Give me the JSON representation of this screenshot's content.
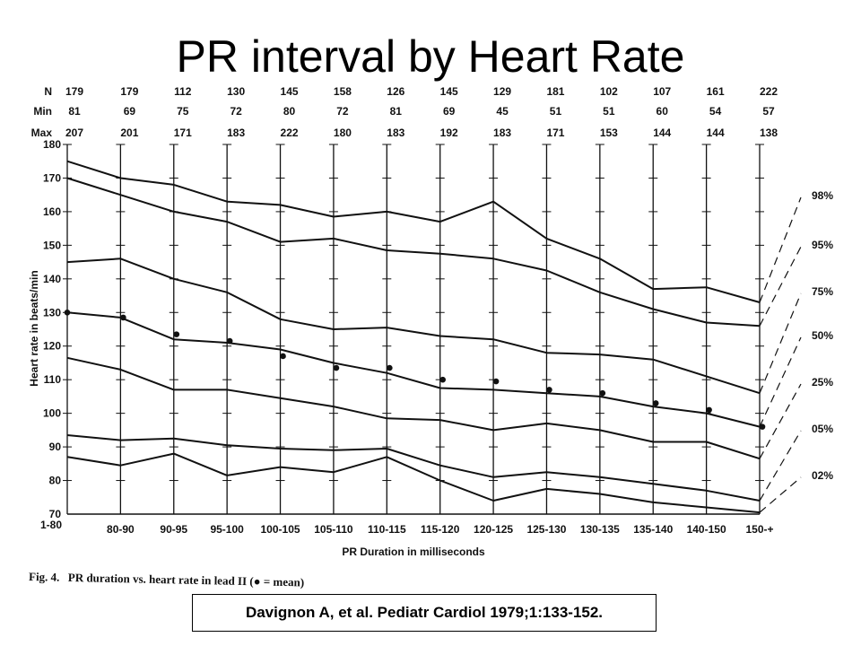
{
  "slide": {
    "title": "PR interval by Heart Rate",
    "citation": "Davignon A, et al. Pediatr Cardiol 1979;1:133-152."
  },
  "chart_data": {
    "type": "line",
    "caption_label": "Fig. 4.",
    "caption": "PR duration vs. heart rate in lead II (● = mean)",
    "xlabel": "PR Duration in milliseconds",
    "ylabel": "Heart rate in beats/min",
    "ylim": [
      70,
      180
    ],
    "yticks": [
      70,
      80,
      90,
      100,
      110,
      120,
      130,
      140,
      150,
      160,
      170,
      180
    ],
    "categories": [
      "1-80",
      "80-90",
      "90-95",
      "95-100",
      "100-105",
      "105-110",
      "110-115",
      "115-120",
      "120-125",
      "125-130",
      "130-135",
      "135-140",
      "140-150",
      "150-+"
    ],
    "row_labels": [
      "N",
      "Min",
      "Max"
    ],
    "N": [
      179,
      179,
      112,
      130,
      145,
      158,
      126,
      145,
      129,
      181,
      102,
      107,
      161,
      222
    ],
    "Min": [
      81,
      69,
      75,
      72,
      80,
      72,
      81,
      69,
      45,
      51,
      51,
      60,
      54,
      57
    ],
    "Max": [
      207,
      201,
      171,
      183,
      222,
      180,
      183,
      192,
      183,
      171,
      153,
      144,
      144,
      138
    ],
    "series": [
      {
        "name": "98%",
        "values": [
          175,
          170,
          168,
          163,
          162,
          158.5,
          160,
          157,
          163,
          152,
          146,
          137,
          137.5,
          133
        ]
      },
      {
        "name": "95%",
        "values": [
          170,
          165,
          160,
          157,
          151,
          152,
          148.5,
          147.5,
          146,
          142.5,
          136,
          131,
          127,
          126
        ]
      },
      {
        "name": "75%",
        "values": [
          145,
          146,
          140,
          136,
          128,
          125,
          125.5,
          123,
          122,
          118,
          117.5,
          116,
          111,
          106
        ]
      },
      {
        "name": "50%",
        "values": [
          130,
          128.5,
          122,
          121,
          119,
          115,
          112,
          107.5,
          107,
          106,
          105,
          102,
          100,
          96
        ]
      },
      {
        "name": "25%",
        "values": [
          116.5,
          113,
          107,
          107,
          104.5,
          102,
          98.5,
          98,
          95,
          97,
          95,
          91.5,
          91.5,
          86.5
        ]
      },
      {
        "name": "05%",
        "values": [
          93.5,
          92,
          92.5,
          90.5,
          89.5,
          89,
          89.5,
          84.5,
          81,
          82.5,
          81,
          79,
          77,
          74
        ]
      },
      {
        "name": "02%",
        "values": [
          87,
          84.5,
          88,
          81.5,
          84,
          82.5,
          87,
          80,
          74,
          77.5,
          76,
          73.5,
          72,
          70.5
        ]
      }
    ],
    "mean": [
      130,
      128.5,
      123.5,
      121.5,
      117,
      113.5,
      113.5,
      110,
      109.5,
      107,
      106,
      103,
      101,
      96
    ],
    "grid": true
  }
}
